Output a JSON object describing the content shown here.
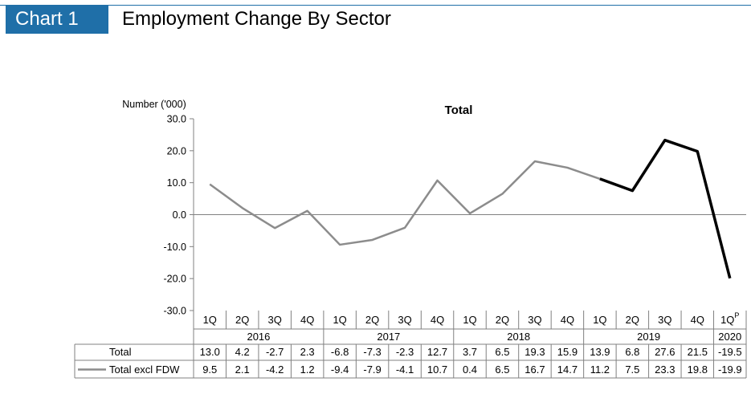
{
  "header": {
    "tag": "Chart 1",
    "title": "Employment Change By Sector"
  },
  "chart_data": {
    "type": "line",
    "title": "Total",
    "ylabel": "Number ('000)",
    "ylim": [
      -30,
      30
    ],
    "yticks": [
      "30.0",
      "20.0",
      "10.0",
      "0.0",
      "-10.0",
      "-20.0",
      "-30.0"
    ],
    "categories": [
      "1Q",
      "2Q",
      "3Q",
      "4Q",
      "1Q",
      "2Q",
      "3Q",
      "4Q",
      "1Q",
      "2Q",
      "3Q",
      "4Q",
      "1Q",
      "2Q",
      "3Q",
      "4Q",
      "1Q"
    ],
    "provisional_marker": "P",
    "years": [
      {
        "label": "2016",
        "count": 4
      },
      {
        "label": "2017",
        "count": 4
      },
      {
        "label": "2018",
        "count": 4
      },
      {
        "label": "2019",
        "count": 4
      },
      {
        "label": "2020",
        "count": 1
      }
    ],
    "series": [
      {
        "name": "Total",
        "values": [
          13.0,
          4.2,
          -2.7,
          2.3,
          -6.8,
          -7.3,
          -2.3,
          12.7,
          3.7,
          6.5,
          19.3,
          15.9,
          13.9,
          6.8,
          27.6,
          21.5,
          -19.5
        ],
        "labels": [
          "13.0",
          "4.2",
          "-2.7",
          "2.3",
          "-6.8",
          "-7.3",
          "-2.3",
          "12.7",
          "3.7",
          "6.5",
          "19.3",
          "15.9",
          "13.9",
          "6.8",
          "27.6",
          "21.5",
          "-19.5"
        ]
      },
      {
        "name": "Total excl FDW",
        "values": [
          9.5,
          2.1,
          -4.2,
          1.2,
          -9.4,
          -7.9,
          -4.1,
          10.7,
          0.4,
          6.5,
          16.7,
          14.7,
          11.2,
          7.5,
          23.3,
          19.8,
          -19.9
        ],
        "labels": [
          "9.5",
          "2.1",
          "-4.2",
          "1.2",
          "-9.4",
          "-7.9",
          "-4.1",
          "10.7",
          "0.4",
          "6.5",
          "16.7",
          "14.7",
          "11.2",
          "7.5",
          "23.3",
          "19.8",
          "-19.9"
        ],
        "color": "#8c8c8c",
        "highlight_color": "#000000",
        "highlight_from_index": 12
      }
    ]
  }
}
